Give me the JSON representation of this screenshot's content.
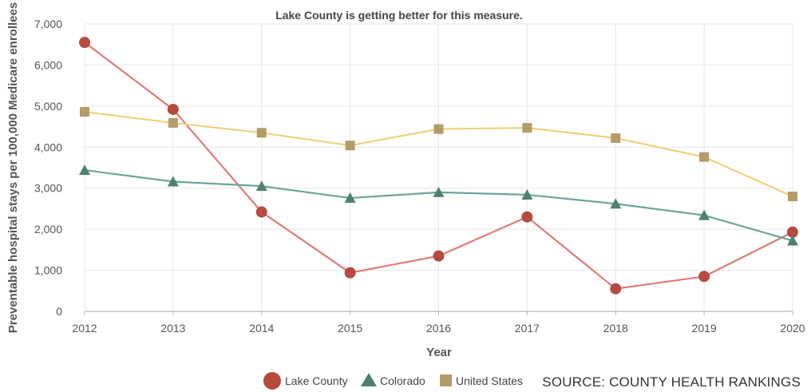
{
  "chart_data": {
    "type": "line",
    "title": "Lake County is getting better for this measure.",
    "xlabel": "Year",
    "ylabel": "Preventable hospital stays per 100,000 Medicare enrollees",
    "x": [
      "2012",
      "2013",
      "2014",
      "2015",
      "2016",
      "2017",
      "2018",
      "2019",
      "2020"
    ],
    "ylim": [
      0,
      7000
    ],
    "yticks": [
      "0",
      "1,000",
      "2,000",
      "3,000",
      "4,000",
      "5,000",
      "6,000",
      "7,000"
    ],
    "grid": true,
    "legend_position": "bottom-center",
    "series": [
      {
        "name": "Lake County",
        "marker": "circle",
        "line_color": "#e07a78",
        "marker_color": "#b54a3e",
        "values": [
          6550,
          4920,
          2420,
          940,
          1350,
          2300,
          550,
          850,
          1930
        ]
      },
      {
        "name": "Colorado",
        "marker": "triangle",
        "line_color": "#6aa59a",
        "marker_color": "#4e8070",
        "values": [
          3440,
          3160,
          3050,
          2760,
          2900,
          2840,
          2620,
          2340,
          1720
        ]
      },
      {
        "name": "United States",
        "marker": "square",
        "line_color": "#f0d27a",
        "marker_color": "#b59a6a",
        "values": [
          4860,
          4590,
          4350,
          4040,
          4440,
          4470,
          4220,
          3760,
          2800
        ]
      }
    ]
  },
  "source": "SOURCE: COUNTY HEALTH RANKINGS"
}
